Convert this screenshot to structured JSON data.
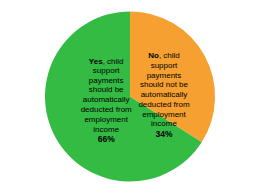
{
  "chart_data": {
    "type": "pie",
    "categories": [
      "Yes, child support payments should be automatically deducted from employment income",
      "No, child support payments should not be automatically deducted from employment income"
    ],
    "values": [
      66,
      34
    ],
    "value_labels": [
      "66%",
      "34%"
    ],
    "colors": [
      "#33bb44",
      "#f5a030"
    ],
    "data_labels": true
  }
}
